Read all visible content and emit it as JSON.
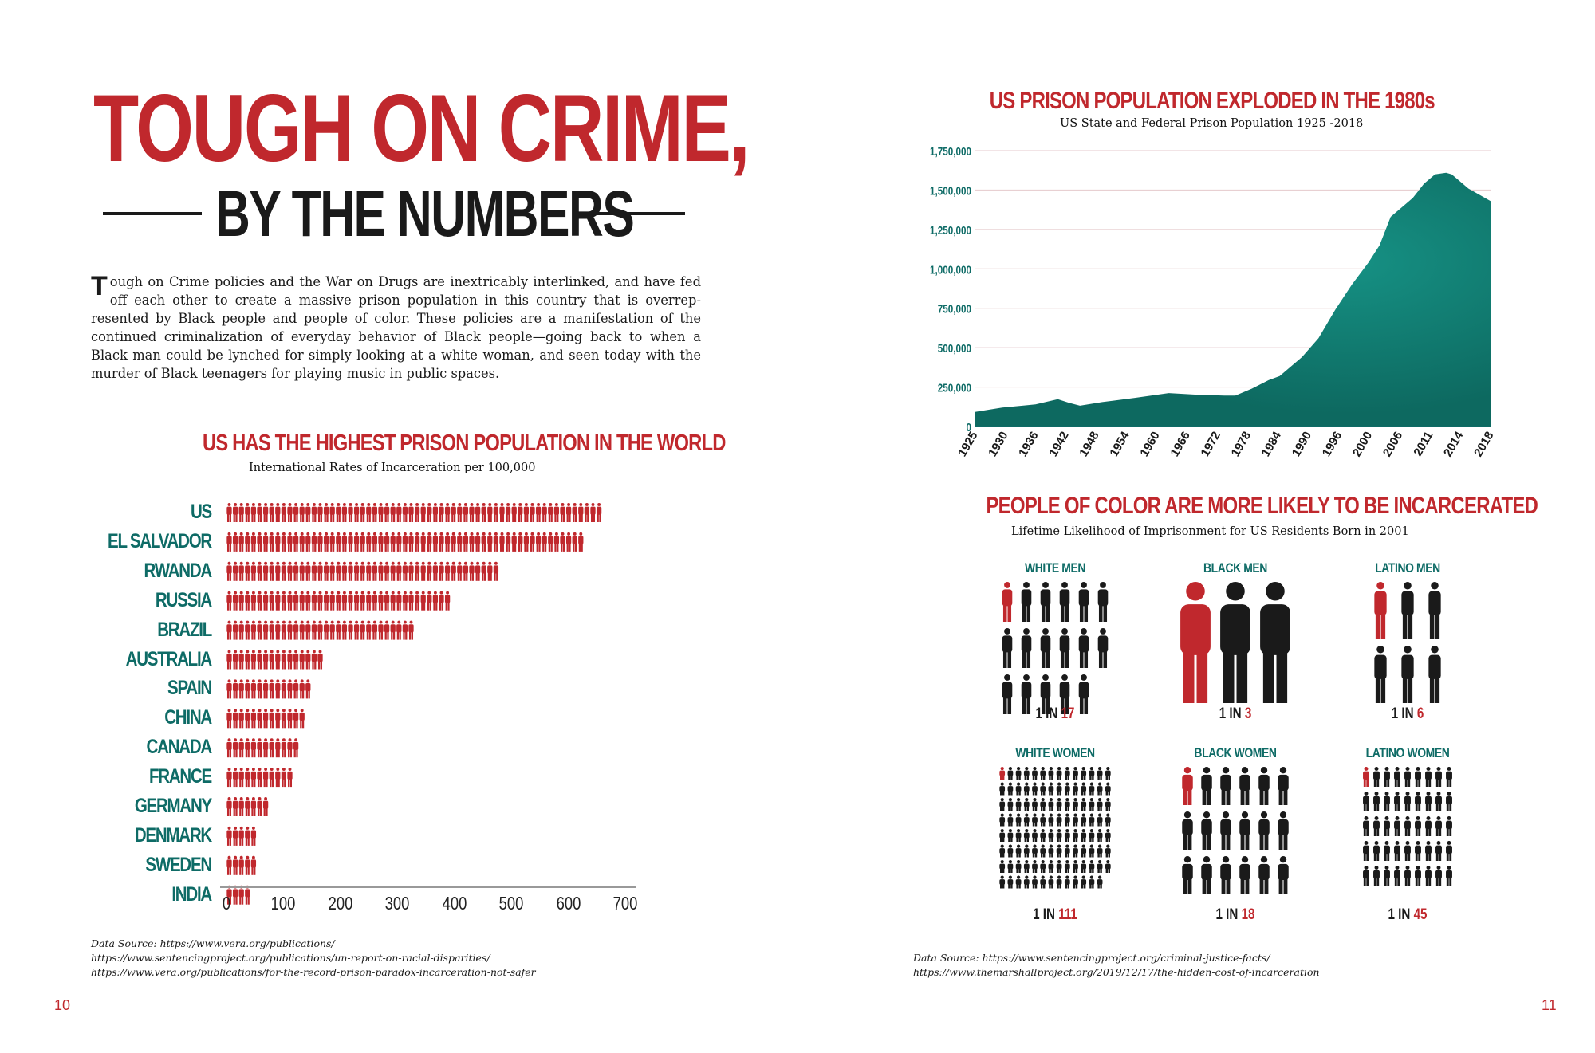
{
  "header": {
    "title": "TOUGH ON CRIME,",
    "subtitle": "BY THE NUMBERS"
  },
  "intro": {
    "drop_cap": "T",
    "text": "ough on Crime policies and the War on Drugs are inextricably interlinked, and have fed off each other to create a massive prison population in this country that is overrep­resented by Black people and people of color. These policies are a manifestation of the continued criminalization of everyday behavior of Black people—going back to when a Black man could be lynched for simply looking at a white woman, and seen today with the murder of Black teenagers for playing music in public spaces."
  },
  "sources_left": {
    "line1": "Data Source: https://www.vera.org/publications/",
    "line2": "https://www.sentencingproject.org/publications/un-report-on-racial-disparities/",
    "line3": "https://www.vera.org/publications/for-the-record-prison-paradox-incarceration-not-safer"
  },
  "sources_right": {
    "line1": "Data Source: https://www.sentencingproject.org/criminal-justice-facts/",
    "line2": "https://www.themarshallproject.org/2019/12/17/the-hidden-cost-of-incarceration"
  },
  "page_numbers": {
    "left": "10",
    "right": "11"
  },
  "colors": {
    "red": "#c0282d",
    "teal": "#0e6b66",
    "area": "#127a6f",
    "black": "#1a1a1a"
  },
  "chart_data": [
    {
      "type": "bar",
      "title": "US HAS THE HIGHEST PRISON POPULATION IN THE WORLD",
      "subtitle": "International Rates of Incarceration per 100,000",
      "orientation": "horizontal",
      "icon": "person-icon",
      "categories": [
        "US",
        "EL SALVADOR",
        "RWANDA",
        "RUSSIA",
        "BRAZIL",
        "AUSTRALIA",
        "SPAIN",
        "CHINA",
        "CANADA",
        "FRANCE",
        "GERMANY",
        "DENMARK",
        "SWEDEN",
        "INDIA"
      ],
      "values": [
        655,
        630,
        475,
        395,
        330,
        165,
        150,
        140,
        130,
        115,
        70,
        55,
        55,
        40
      ],
      "xlim": [
        0,
        700
      ],
      "xticks": [
        "0",
        "100",
        "200",
        "300",
        "400",
        "500",
        "600",
        "700"
      ]
    },
    {
      "type": "area",
      "title": "US PRISON POPULATION EXPLODED IN THE 1980s",
      "subtitle": "US State and Federal Prison Population 1925 -2018",
      "x_ticks": [
        "1925",
        "1930",
        "1936",
        "1942",
        "1948",
        "1954",
        "1960",
        "1966",
        "1972",
        "1978",
        "1984",
        "1990",
        "1996",
        "2000",
        "2006",
        "2011",
        "2014",
        "2018"
      ],
      "y_ticks": [
        "0",
        "250,000",
        "500,000",
        "750,000",
        "1,000,000",
        "1,250,000",
        "1,500,000",
        "1,750,000"
      ],
      "ylim": [
        0,
        1750000
      ],
      "grid": true,
      "x": [
        1925,
        1930,
        1936,
        1940,
        1942,
        1944,
        1948,
        1954,
        1960,
        1966,
        1970,
        1972,
        1975,
        1978,
        1980,
        1984,
        1987,
        1990,
        1993,
        1996,
        1998,
        2000,
        2004,
        2006,
        2008,
        2010,
        2011,
        2012,
        2014,
        2016,
        2018
      ],
      "values": [
        91669,
        120000,
        140000,
        173000,
        150000,
        132000,
        155000,
        182000,
        212000,
        200000,
        196000,
        196000,
        240000,
        294000,
        320000,
        440000,
        560000,
        740000,
        900000,
        1040000,
        1150000,
        1330000,
        1450000,
        1540000,
        1600000,
        1610000,
        1600000,
        1570000,
        1510000,
        1470000,
        1430000
      ]
    },
    {
      "type": "pictogram",
      "title": "PEOPLE OF COLOR ARE MORE LIKELY TO BE INCARCERATED",
      "subtitle": "Lifetime Likelihood of Imprisonment for US Residents Born in 2001",
      "groups": [
        {
          "label": "WHITE MEN",
          "prefix": "1 IN ",
          "number": "17",
          "value": 17
        },
        {
          "label": "BLACK MEN",
          "prefix": "1 IN ",
          "number": "3",
          "value": 3
        },
        {
          "label": "LATINO MEN",
          "prefix": "1 IN ",
          "number": "6",
          "value": 6
        },
        {
          "label": "WHITE WOMEN",
          "prefix": "1 IN ",
          "number": "111",
          "value": 111
        },
        {
          "label": "BLACK WOMEN",
          "prefix": "1 IN ",
          "number": "18",
          "value": 18
        },
        {
          "label": "LATINO WOMEN",
          "prefix": "1 IN ",
          "number": "45",
          "value": 45
        }
      ]
    }
  ]
}
